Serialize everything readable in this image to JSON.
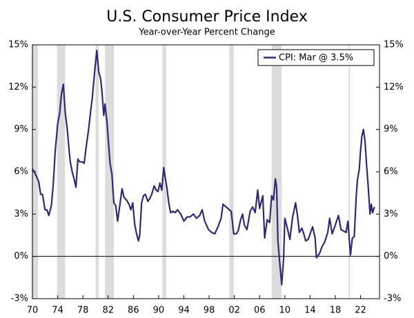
{
  "chart_data": {
    "type": "line",
    "title": "U.S. Consumer Price Index",
    "subtitle": "Year-over-Year Percent Change",
    "x": [
      1970.0,
      1970.3,
      1970.6,
      1971.0,
      1971.3,
      1971.6,
      1972.0,
      1972.3,
      1972.6,
      1973.0,
      1973.3,
      1973.6,
      1974.0,
      1974.3,
      1974.6,
      1974.9,
      1975.2,
      1975.5,
      1975.8,
      1976.0,
      1976.3,
      1976.6,
      1976.9,
      1977.2,
      1977.5,
      1977.9,
      1978.2,
      1978.5,
      1978.9,
      1979.2,
      1979.5,
      1979.9,
      1980.2,
      1980.5,
      1980.8,
      1981.0,
      1981.3,
      1981.5,
      1981.8,
      1982.0,
      1982.3,
      1982.6,
      1982.9,
      1983.2,
      1983.5,
      1983.9,
      1984.2,
      1984.5,
      1984.9,
      1985.3,
      1985.6,
      1985.9,
      1986.2,
      1986.5,
      1986.8,
      1987.0,
      1987.3,
      1987.6,
      1987.9,
      1988.3,
      1988.6,
      1988.9,
      1989.3,
      1989.6,
      1989.9,
      1990.2,
      1990.5,
      1990.8,
      1991.0,
      1991.3,
      1991.6,
      1991.9,
      1992.3,
      1992.6,
      1993.0,
      1993.5,
      1994.0,
      1994.5,
      1995.0,
      1995.5,
      1996.0,
      1996.5,
      1996.9,
      1997.3,
      1997.9,
      1998.4,
      1998.9,
      1999.4,
      1999.9,
      2000.2,
      2000.7,
      2001.2,
      2001.5,
      2001.9,
      2002.3,
      2002.6,
      2003.0,
      2003.3,
      2003.6,
      2004.0,
      2004.5,
      2004.9,
      2005.3,
      2005.7,
      2006.0,
      2006.5,
      2006.8,
      2007.2,
      2007.6,
      2007.9,
      2008.2,
      2008.5,
      2008.7,
      2008.9,
      2009.1,
      2009.5,
      2009.8,
      2010.0,
      2010.4,
      2010.8,
      2011.2,
      2011.7,
      2012.0,
      2012.3,
      2012.7,
      2013.0,
      2013.3,
      2013.7,
      2014.0,
      2014.4,
      2014.8,
      2015.0,
      2015.5,
      2015.9,
      2016.3,
      2016.8,
      2017.1,
      2017.5,
      2017.9,
      2018.5,
      2018.9,
      2019.3,
      2019.7,
      2020.0,
      2020.4,
      2020.7,
      2021.0,
      2021.3,
      2021.5,
      2021.8,
      2022.0,
      2022.2,
      2022.45,
      2022.7,
      2022.95,
      2023.2,
      2023.5,
      2023.7,
      2023.9,
      2024.0,
      2024.2
    ],
    "series": [
      {
        "name": "CPI: Mar @ 3.5%",
        "color": "#2e2a6e",
        "values": [
          6.2,
          6.0,
          5.7,
          5.3,
          4.4,
          4.4,
          3.3,
          3.3,
          2.9,
          3.6,
          5.1,
          7.4,
          9.4,
          10.1,
          11.5,
          12.2,
          10.2,
          9.1,
          7.6,
          6.7,
          6.0,
          5.5,
          4.9,
          6.9,
          6.7,
          6.7,
          6.6,
          7.7,
          9.0,
          10.2,
          11.3,
          13.3,
          14.6,
          13.1,
          12.6,
          11.8,
          10.0,
          10.8,
          9.6,
          8.4,
          6.6,
          5.8,
          3.8,
          3.6,
          2.5,
          3.8,
          4.8,
          4.2,
          4.0,
          3.7,
          3.3,
          3.8,
          2.3,
          1.6,
          1.1,
          1.5,
          3.8,
          4.3,
          4.4,
          3.9,
          4.1,
          4.4,
          5.0,
          4.7,
          4.6,
          5.2,
          4.7,
          6.3,
          5.7,
          4.9,
          3.8,
          3.1,
          3.2,
          3.1,
          3.3,
          3.0,
          2.5,
          2.8,
          2.8,
          3.0,
          2.7,
          2.9,
          3.3,
          2.5,
          1.9,
          1.7,
          1.6,
          2.1,
          2.7,
          3.7,
          3.5,
          3.3,
          3.2,
          1.6,
          1.6,
          1.8,
          2.6,
          3.0,
          2.2,
          1.9,
          3.2,
          3.5,
          3.1,
          4.7,
          3.4,
          4.3,
          1.3,
          2.6,
          2.4,
          4.3,
          4.0,
          5.5,
          4.9,
          1.1,
          0.0,
          -2.0,
          -0.2,
          2.7,
          2.0,
          1.2,
          2.7,
          3.8,
          2.9,
          1.7,
          2.0,
          1.6,
          1.1,
          1.2,
          1.6,
          2.1,
          1.3,
          -0.1,
          0.2,
          0.7,
          1.0,
          1.7,
          2.7,
          1.6,
          2.1,
          2.9,
          1.9,
          1.8,
          1.7,
          2.5,
          0.1,
          1.3,
          1.4,
          4.2,
          5.4,
          6.2,
          7.5,
          8.5,
          9.0,
          8.2,
          6.5,
          5.0,
          3.0,
          3.7,
          3.1,
          3.2,
          3.5
        ]
      }
    ],
    "recessions": [
      [
        1969.9,
        1970.9
      ],
      [
        1973.9,
        1975.2
      ],
      [
        1980.0,
        1980.5
      ],
      [
        1981.5,
        1982.9
      ],
      [
        1990.6,
        1991.2
      ],
      [
        2001.2,
        2001.9
      ],
      [
        2007.9,
        2009.5
      ],
      [
        2020.1,
        2020.3
      ]
    ],
    "recession_color": "#dcdcdc",
    "xlim": [
      1970,
      2025
    ],
    "xticks": [
      {
        "value": 1970,
        "label": "70"
      },
      {
        "value": 1974,
        "label": "74"
      },
      {
        "value": 1978,
        "label": "78"
      },
      {
        "value": 1982,
        "label": "82"
      },
      {
        "value": 1986,
        "label": "86"
      },
      {
        "value": 1990,
        "label": "90"
      },
      {
        "value": 1994,
        "label": "94"
      },
      {
        "value": 1998,
        "label": "98"
      },
      {
        "value": 2002,
        "label": "02"
      },
      {
        "value": 2006,
        "label": "06"
      },
      {
        "value": 2010,
        "label": "10"
      },
      {
        "value": 2014,
        "label": "14"
      },
      {
        "value": 2018,
        "label": "18"
      },
      {
        "value": 2022,
        "label": "22"
      }
    ],
    "ylim": [
      -3,
      15
    ],
    "yticks": [
      {
        "value": -3,
        "label": "-3%"
      },
      {
        "value": 0,
        "label": "0%"
      },
      {
        "value": 3,
        "label": "3%"
      },
      {
        "value": 6,
        "label": "6%"
      },
      {
        "value": 9,
        "label": "9%"
      },
      {
        "value": 12,
        "label": "12%"
      },
      {
        "value": 15,
        "label": "15%"
      }
    ],
    "y2lim": [
      -3,
      15
    ],
    "y2ticks": [
      {
        "value": -3,
        "label": "-3%"
      },
      {
        "value": 0,
        "label": "0%"
      },
      {
        "value": 3,
        "label": "3%"
      },
      {
        "value": 6,
        "label": "6%"
      },
      {
        "value": 9,
        "label": "9%"
      },
      {
        "value": 12,
        "label": "12%"
      },
      {
        "value": 15,
        "label": "15%"
      }
    ],
    "legend": "upper-right"
  }
}
